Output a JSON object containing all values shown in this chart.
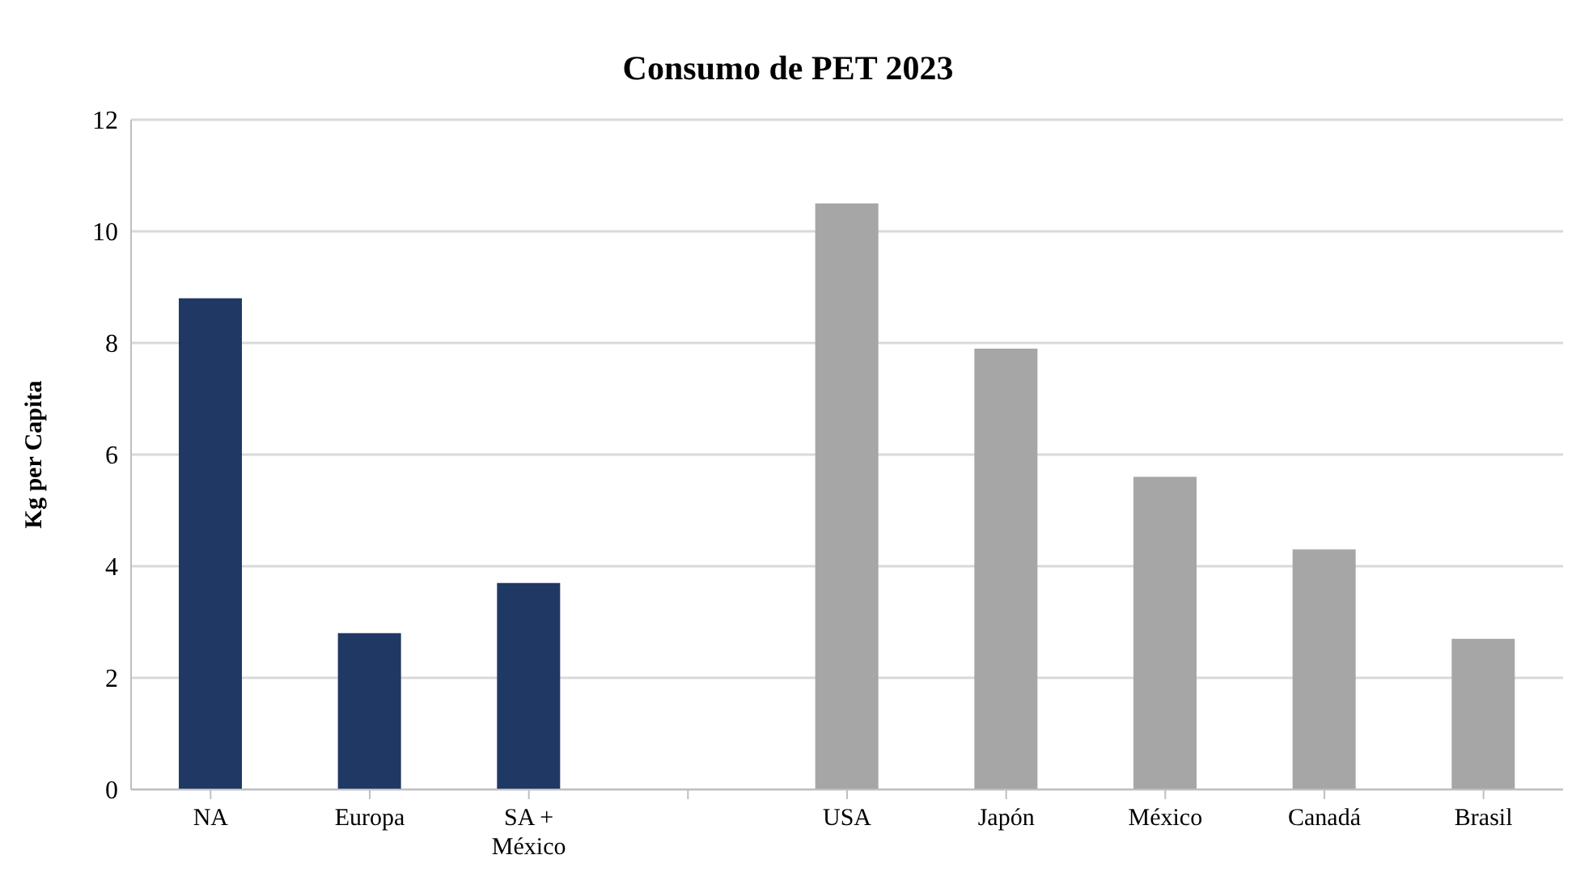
{
  "chart_data": {
    "type": "bar",
    "title": "Consumo de PET 2023",
    "ylabel": "Kg per Capita",
    "categories": [
      "NA",
      "Europa",
      "SA + México",
      null,
      "USA",
      "Japón",
      "México",
      "Canadá",
      "Brasil"
    ],
    "values": [
      8.8,
      2.8,
      3.7,
      null,
      10.5,
      7.9,
      5.6,
      4.3,
      2.7
    ],
    "colors": [
      "#203864",
      "#203864",
      "#203864",
      "#a6a6a6",
      "#a6a6a6",
      "#a6a6a6",
      "#a6a6a6",
      "#a6a6a6",
      "#a6a6a6"
    ],
    "ylim": [
      0,
      12
    ],
    "yticks": [
      0,
      2,
      4,
      6,
      8,
      10,
      12
    ],
    "grid": "y"
  }
}
